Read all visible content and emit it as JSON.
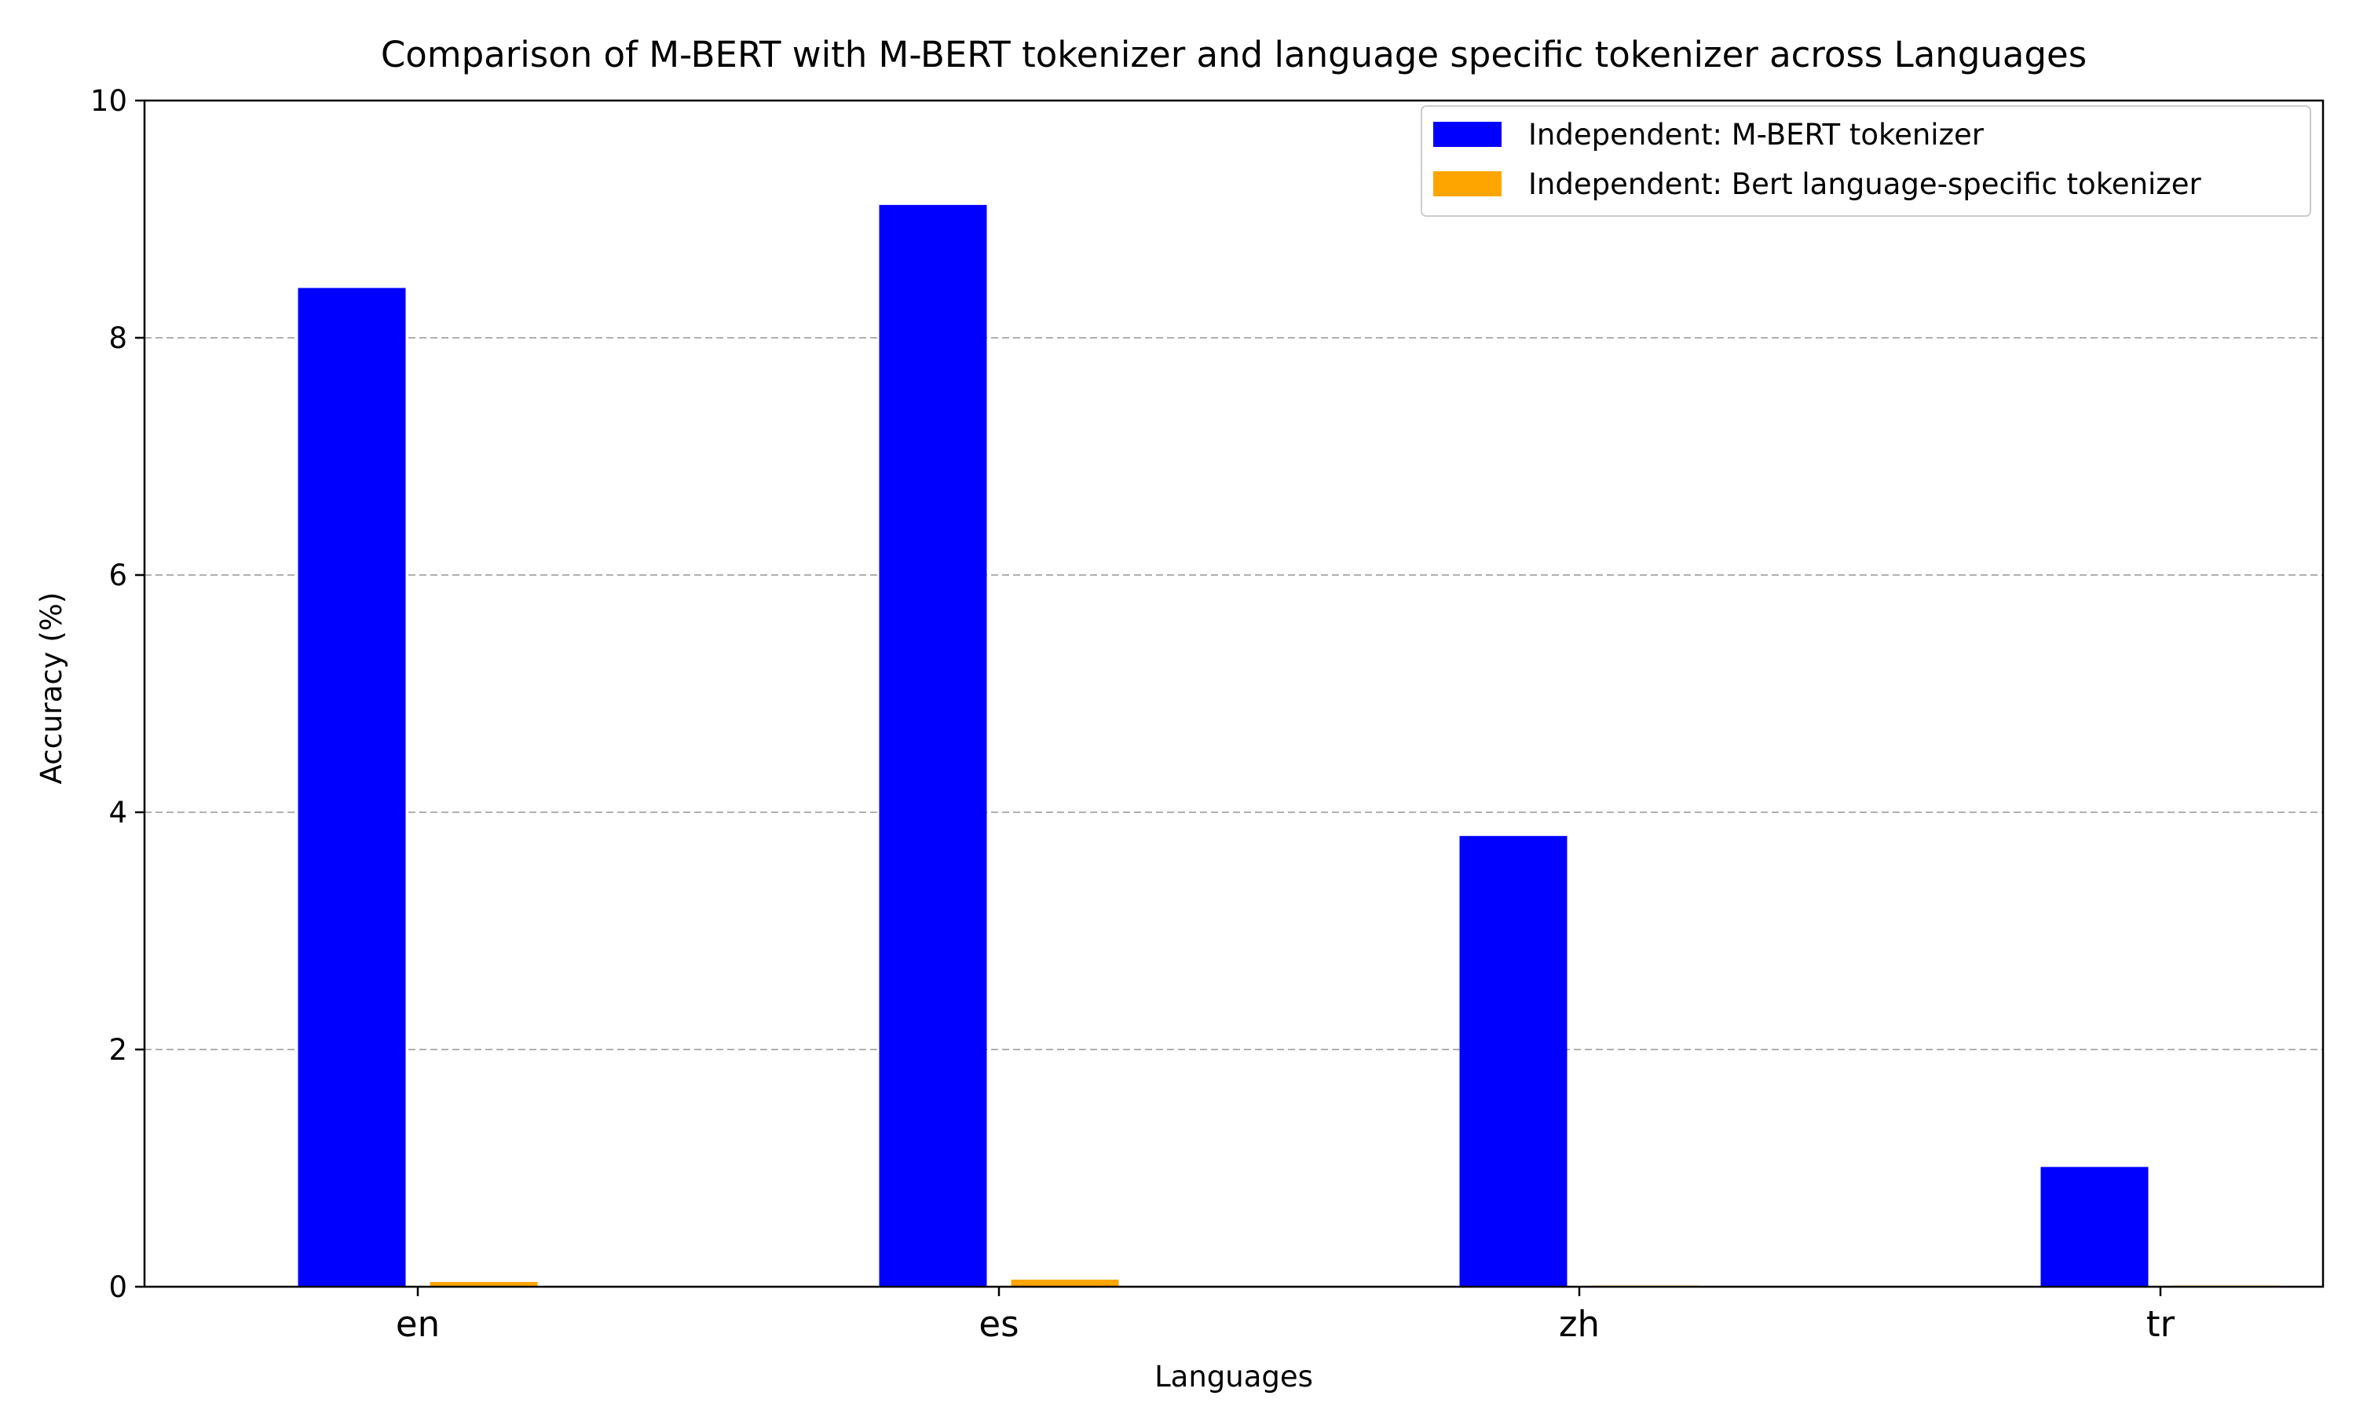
{
  "chart_data": {
    "type": "bar",
    "title": "Comparison of M-BERT with M-BERT tokenizer and language specific tokenizer across Languages",
    "xlabel": "Languages",
    "ylabel": "Accuracy (%)",
    "categories": [
      "en",
      "es",
      "zh",
      "tr"
    ],
    "series": [
      {
        "name": "Independent: M-BERT tokenizer",
        "color": "#0000ff",
        "values": [
          8.42,
          9.12,
          3.8,
          1.01
        ]
      },
      {
        "name": "Independent: Bert language-specific tokenizer",
        "color": "#ffa500",
        "values": [
          0.04,
          0.06,
          0.01,
          0.01
        ]
      }
    ],
    "ylim": [
      0,
      10
    ],
    "yticks": [
      0,
      2,
      4,
      6,
      8,
      10
    ],
    "grid": "y-dashed",
    "legend": "top-right"
  }
}
